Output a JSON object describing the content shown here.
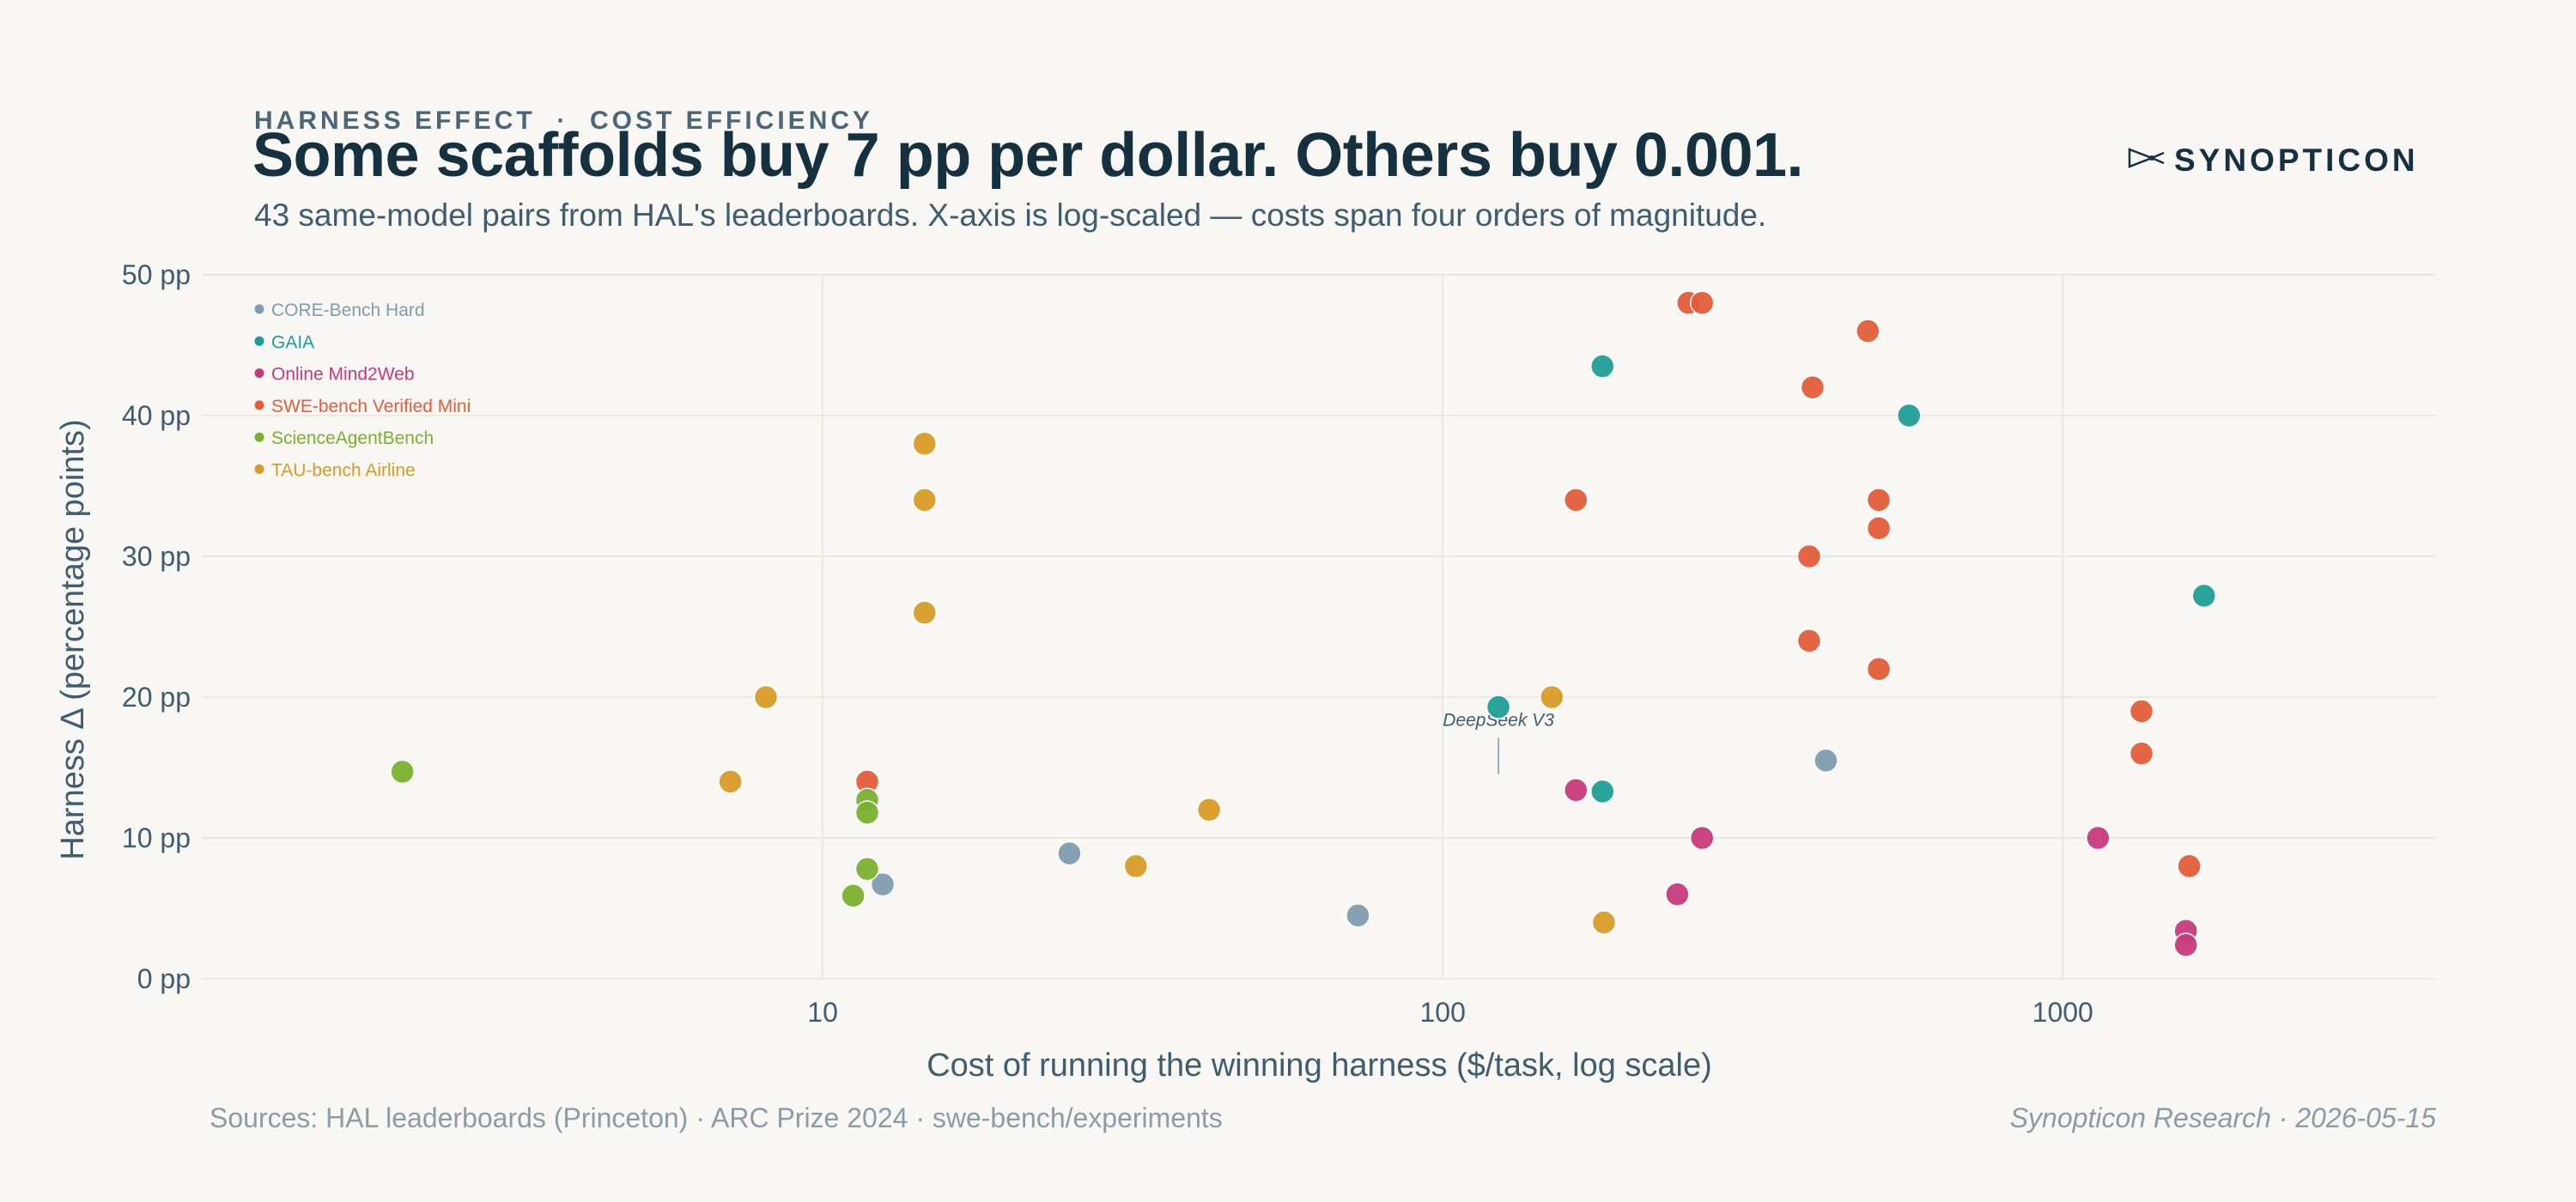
{
  "header": {
    "kicker": "HARNESS EFFECT  ·  COST EFFICIENCY",
    "title": "Some scaffolds buy 7 pp per dollar. Others buy 0.001.",
    "subtitle": "43 same-model pairs from HAL's leaderboards. X-axis is log-scaled — costs span four orders of magnitude."
  },
  "brand": {
    "name": "SYNOPTICON",
    "icon": "telescope-icon"
  },
  "footer": {
    "sources": "Sources: HAL leaderboards (Princeton) · ARC Prize 2024 · swe-bench/experiments",
    "credit": "Synopticon Research · 2026-05-15"
  },
  "chart_data": {
    "type": "scatter",
    "xlabel": "Cost of running the winning harness ($/task, log scale)",
    "ylabel": "Harness Δ (percentage points)",
    "xscale": "log",
    "xlim": [
      1,
      4000
    ],
    "ylim": [
      0,
      50
    ],
    "xticks": [
      10,
      100,
      1000
    ],
    "xtick_labels": [
      "10",
      "100",
      "1000"
    ],
    "yticks": [
      0,
      10,
      20,
      30,
      40,
      50
    ],
    "ytick_labels": [
      "0 pp",
      "10 pp",
      "20 pp",
      "30 pp",
      "40 pp",
      "50 pp"
    ],
    "grid": true,
    "legend_position": "top-left",
    "annotations": [
      {
        "text": "DeepSeek V3",
        "x": 123,
        "y": 19.3
      }
    ],
    "series": [
      {
        "name": "CORE-Bench Hard",
        "color": "#7f9cae",
        "points": [
          {
            "x": 12.5,
            "y": 6.7
          },
          {
            "x": 25,
            "y": 8.9
          },
          {
            "x": 73,
            "y": 4.5
          },
          {
            "x": 415,
            "y": 15.5
          }
        ]
      },
      {
        "name": "GAIA",
        "color": "#1f9e95",
        "points": [
          {
            "x": 123,
            "y": 19.3
          },
          {
            "x": 181,
            "y": 43.5
          },
          {
            "x": 181,
            "y": 13.3
          },
          {
            "x": 565,
            "y": 40
          },
          {
            "x": 1690,
            "y": 27.2
          }
        ]
      },
      {
        "name": "Online Mind2Web",
        "color": "#c73a7a",
        "points": [
          {
            "x": 164,
            "y": 13.4
          },
          {
            "x": 239,
            "y": 6
          },
          {
            "x": 262,
            "y": 10
          },
          {
            "x": 1140,
            "y": 10
          },
          {
            "x": 1580,
            "y": 3.4
          },
          {
            "x": 1580,
            "y": 2.4
          }
        ]
      },
      {
        "name": "SWE-bench Verified Mini",
        "color": "#e35d3a",
        "points": [
          {
            "x": 11.8,
            "y": 14
          },
          {
            "x": 164,
            "y": 34
          },
          {
            "x": 249,
            "y": 48
          },
          {
            "x": 262,
            "y": 48
          },
          {
            "x": 395,
            "y": 42
          },
          {
            "x": 390,
            "y": 30
          },
          {
            "x": 390,
            "y": 24
          },
          {
            "x": 485,
            "y": 46
          },
          {
            "x": 505,
            "y": 34
          },
          {
            "x": 505,
            "y": 32
          },
          {
            "x": 505,
            "y": 22
          },
          {
            "x": 1340,
            "y": 19
          },
          {
            "x": 1340,
            "y": 16
          },
          {
            "x": 1600,
            "y": 8
          }
        ]
      },
      {
        "name": "ScienceAgentBench",
        "color": "#79b12f",
        "points": [
          {
            "x": 2.1,
            "y": 14.7
          },
          {
            "x": 11.8,
            "y": 12.7
          },
          {
            "x": 11.8,
            "y": 11.8
          },
          {
            "x": 11.8,
            "y": 7.8
          },
          {
            "x": 11.2,
            "y": 5.9
          }
        ]
      },
      {
        "name": "TAU-bench Airline",
        "color": "#d89b27",
        "points": [
          {
            "x": 14.6,
            "y": 38
          },
          {
            "x": 14.6,
            "y": 34
          },
          {
            "x": 14.6,
            "y": 26
          },
          {
            "x": 8.1,
            "y": 20
          },
          {
            "x": 7.1,
            "y": 14
          },
          {
            "x": 42,
            "y": 12
          },
          {
            "x": 32,
            "y": 8
          },
          {
            "x": 150,
            "y": 20
          },
          {
            "x": 182,
            "y": 4
          }
        ]
      }
    ]
  }
}
